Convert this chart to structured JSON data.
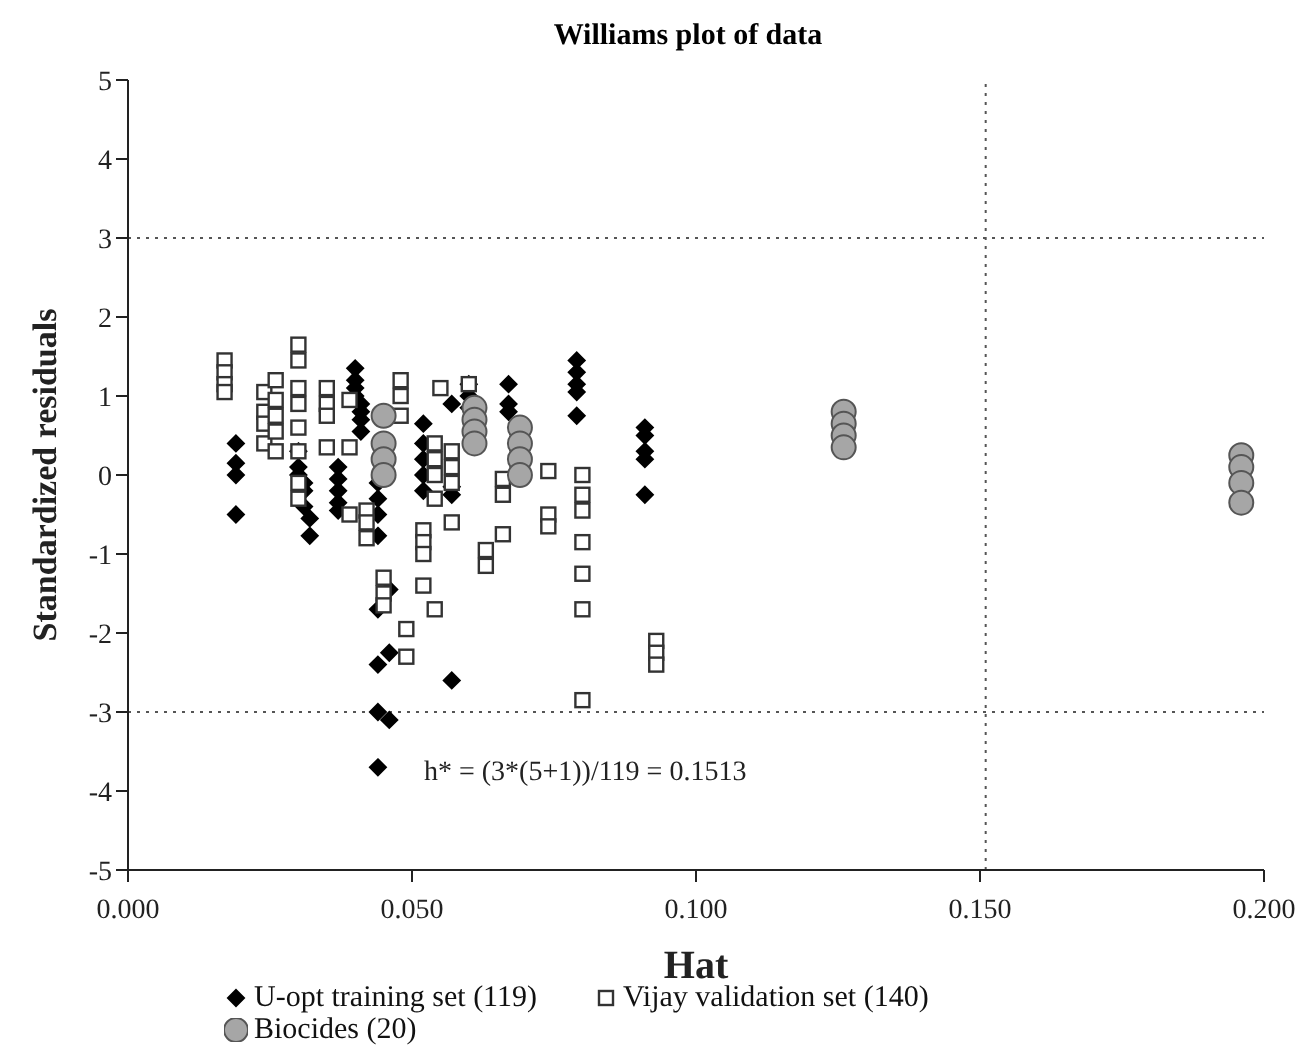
{
  "chart_data": {
    "type": "scatter",
    "title": "Williams plot of data",
    "xlabel": "Hat",
    "ylabel": "Standardized residuals",
    "xlim": [
      0,
      0.2
    ],
    "xticks": [
      {
        "value": 0,
        "label": "0.000"
      },
      {
        "value": 0.05,
        "label": "0.050"
      },
      {
        "value": 0.1,
        "label": "0.100"
      },
      {
        "value": 0.15,
        "label": "0.150"
      },
      {
        "value": 0.2,
        "label": "0.200"
      }
    ],
    "ylim": [
      -5,
      5
    ],
    "yticks": [
      -5,
      -4,
      -3,
      -2,
      -1,
      0,
      1,
      2,
      3,
      4,
      5
    ],
    "grid": false,
    "legend": "bottom",
    "ref_lines": [
      {
        "axis": "y",
        "value": 3,
        "line_style": "dotted",
        "color": "#555555"
      },
      {
        "axis": "y",
        "value": -3,
        "line_style": "dotted",
        "color": "#555555"
      },
      {
        "axis": "x",
        "value": 0.151,
        "line_style": "dotted",
        "color": "#555555"
      }
    ],
    "annotations": [
      "h* = (3*(5+1))/119 = 0.1513"
    ],
    "series": [
      {
        "name": "U-opt training set (119)",
        "color": "#000000",
        "marker": "diamond",
        "x": [
          0.019,
          0.019,
          0.019,
          0.019,
          0.03,
          0.03,
          0.03,
          0.031,
          0.031,
          0.031,
          0.032,
          0.032,
          0.037,
          0.037,
          0.037,
          0.037,
          0.037,
          0.04,
          0.04,
          0.04,
          0.04,
          0.041,
          0.041,
          0.041,
          0.041,
          0.044,
          0.044,
          0.044,
          0.044,
          0.044,
          0.044,
          0.044,
          0.044,
          0.046,
          0.046,
          0.046,
          0.052,
          0.052,
          0.052,
          0.052,
          0.052,
          0.057,
          0.057,
          0.057,
          0.057,
          0.06,
          0.06,
          0.06,
          0.067,
          0.067,
          0.067,
          0.079,
          0.079,
          0.079,
          0.079,
          0.079,
          0.091,
          0.091,
          0.091,
          0.091,
          0.091
        ],
        "values": [
          0.4,
          0.15,
          0,
          -0.5,
          0.3,
          0.1,
          0,
          -0.1,
          -0.2,
          -0.4,
          -0.55,
          -0.77,
          0.1,
          -0.05,
          -0.2,
          -0.35,
          -0.45,
          1.35,
          1.2,
          1.1,
          1,
          0.9,
          0.8,
          0.7,
          0.55,
          -0.1,
          -0.3,
          -0.5,
          -0.77,
          -1.7,
          -2.4,
          -3,
          -3.7,
          -1.45,
          -2.25,
          -3.1,
          0.65,
          0.4,
          0.2,
          0,
          -0.2,
          0.9,
          -0.15,
          -0.25,
          -2.6,
          1.15,
          1,
          0.85,
          1.15,
          0.9,
          0.8,
          1.45,
          1.3,
          1.15,
          1.05,
          0.75,
          0.6,
          0.5,
          0.3,
          0.2,
          -0.25
        ]
      },
      {
        "name": "Vijay validation set (140)",
        "color": "#333333",
        "marker": "square",
        "x": [
          0.017,
          0.017,
          0.017,
          0.017,
          0.024,
          0.024,
          0.024,
          0.024,
          0.026,
          0.026,
          0.026,
          0.026,
          0.026,
          0.03,
          0.03,
          0.03,
          0.03,
          0.03,
          0.03,
          0.03,
          0.03,
          0.035,
          0.035,
          0.035,
          0.035,
          0.039,
          0.039,
          0.039,
          0.042,
          0.042,
          0.042,
          0.045,
          0.045,
          0.045,
          0.048,
          0.048,
          0.048,
          0.049,
          0.049,
          0.052,
          0.052,
          0.052,
          0.052,
          0.054,
          0.054,
          0.054,
          0.054,
          0.054,
          0.055,
          0.057,
          0.057,
          0.057,
          0.057,
          0.06,
          0.063,
          0.063,
          0.066,
          0.066,
          0.066,
          0.074,
          0.074,
          0.074,
          0.08,
          0.08,
          0.08,
          0.08,
          0.08,
          0.08,
          0.08,
          0.093,
          0.093,
          0.093
        ],
        "values": [
          1.45,
          1.3,
          1.15,
          1.05,
          1.05,
          0.8,
          0.65,
          0.4,
          1.2,
          0.95,
          0.75,
          0.55,
          0.3,
          1.65,
          1.45,
          1.1,
          0.9,
          0.6,
          0.3,
          -0.1,
          -0.3,
          1.1,
          0.9,
          0.75,
          0.35,
          0.95,
          0.35,
          -0.5,
          -0.45,
          -0.6,
          -0.8,
          -1.3,
          -1.5,
          -1.65,
          1.2,
          1,
          0.75,
          -1.95,
          -2.3,
          -0.7,
          -0.85,
          -1,
          -1.4,
          0.4,
          0.2,
          0,
          -0.3,
          -1.7,
          1.1,
          0.3,
          0.1,
          -0.1,
          -0.6,
          1.15,
          -0.95,
          -1.15,
          -0.05,
          -0.25,
          -0.75,
          0.05,
          -0.5,
          -0.65,
          0,
          -0.25,
          -0.45,
          -0.85,
          -1.25,
          -1.7,
          -2.85,
          -2.1,
          -2.25,
          -2.4
        ]
      },
      {
        "name": "Biocides (20)",
        "color": "#a6a6a6",
        "marker": "circle",
        "x": [
          0.045,
          0.045,
          0.045,
          0.045,
          0.061,
          0.061,
          0.061,
          0.061,
          0.069,
          0.069,
          0.069,
          0.069,
          0.126,
          0.126,
          0.126,
          0.126,
          0.196,
          0.196,
          0.196,
          0.196
        ],
        "values": [
          0.75,
          0.4,
          0.2,
          0,
          0.85,
          0.7,
          0.55,
          0.4,
          0.6,
          0.4,
          0.2,
          0,
          0.8,
          0.65,
          0.5,
          0.35,
          0.25,
          0.1,
          -0.1,
          -0.35
        ]
      }
    ]
  }
}
